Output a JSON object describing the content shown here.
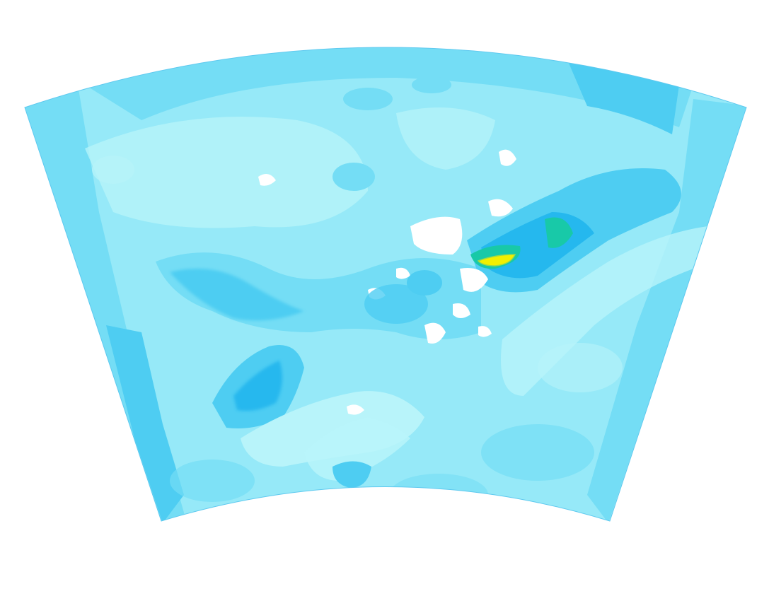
{
  "map": {
    "projection": "conic",
    "colors": {
      "background": "#ffffff",
      "level_0": "#ffffff",
      "level_1": "#b8f4fa",
      "level_2": "#96e9f8",
      "level_3": "#74ddf5",
      "level_4": "#4ecdf2",
      "level_5": "#25b8ee",
      "level_6": "#18c9a8",
      "level_7": "#9ad84a",
      "level_8": "#f1f000"
    },
    "peak": {
      "description_icon": "yellow-maximum-band"
    }
  }
}
